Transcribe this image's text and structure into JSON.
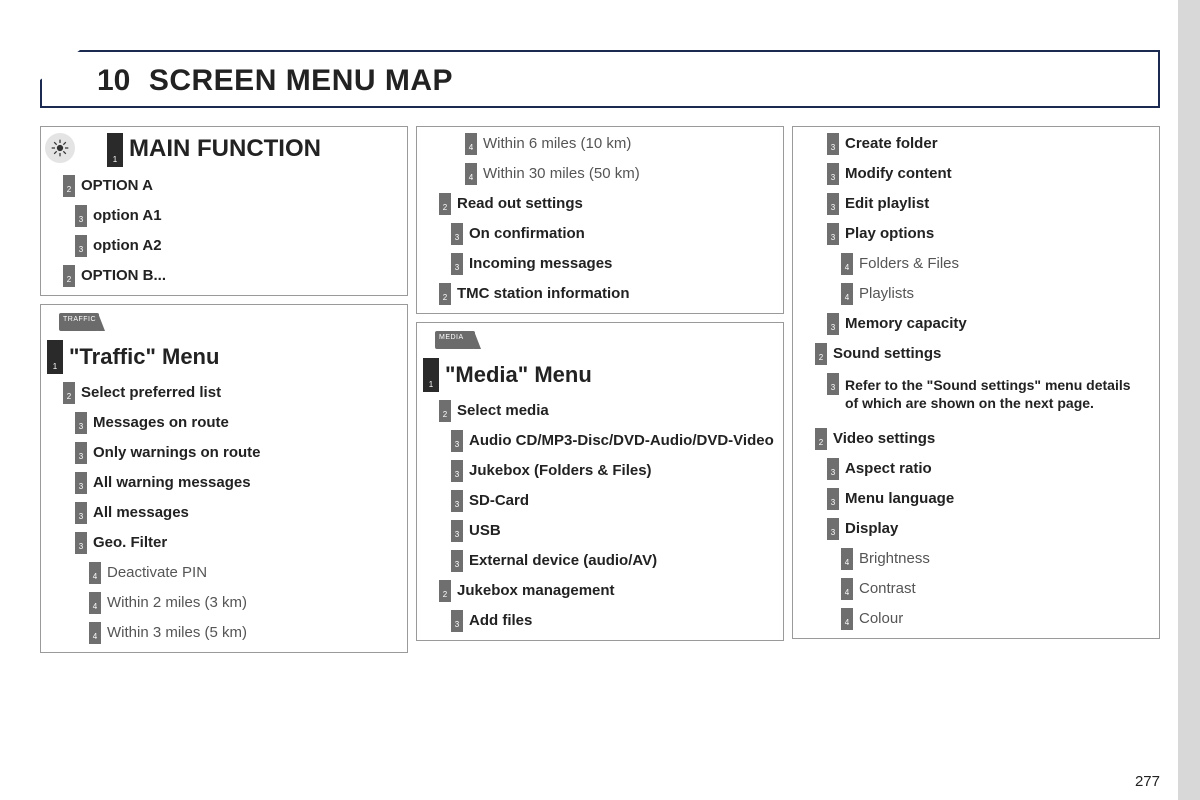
{
  "page_number": "277",
  "header": {
    "num": "10",
    "title": "SCREEN MENU MAP"
  },
  "columns": [
    {
      "boxes": [
        {
          "icon": "legend-sun",
          "rows": [
            {
              "level": "h1",
              "label": "MAIN FUNCTION",
              "n": "1"
            },
            {
              "gap": true
            },
            {
              "level": 2,
              "label": "OPTION A",
              "n": "2"
            },
            {
              "gap": true
            },
            {
              "level": 3,
              "label": "option A1",
              "n": "3"
            },
            {
              "gap": true
            },
            {
              "level": 3,
              "label": "option A2",
              "n": "3"
            },
            {
              "gap": true
            },
            {
              "level": 2,
              "label": "OPTION B...",
              "n": "2"
            }
          ]
        },
        {
          "group_icon": "TRAFFIC",
          "rows": [
            {
              "level": 1,
              "label": "\"Traffic\" Menu",
              "n": "1"
            },
            {
              "gap": true
            },
            {
              "level": 2,
              "label": "Select preferred list",
              "n": "2"
            },
            {
              "gap": true
            },
            {
              "level": 3,
              "label": "Messages on route",
              "n": "3"
            },
            {
              "gap": true
            },
            {
              "level": 3,
              "label": "Only warnings on route",
              "n": "3"
            },
            {
              "gap": true
            },
            {
              "level": 3,
              "label": "All warning messages",
              "n": "3"
            },
            {
              "gap": true
            },
            {
              "level": 3,
              "label": "All messages",
              "n": "3"
            },
            {
              "gap": true
            },
            {
              "level": 3,
              "label": "Geo. Filter",
              "n": "3"
            },
            {
              "gap": true
            },
            {
              "level": 4,
              "label": "Deactivate PIN",
              "n": "4"
            },
            {
              "gap": true
            },
            {
              "level": 4,
              "label": "Within 2 miles (3 km)",
              "n": "4"
            },
            {
              "gap": true
            },
            {
              "level": 4,
              "label": "Within 3 miles (5 km)",
              "n": "4"
            }
          ]
        }
      ]
    },
    {
      "boxes": [
        {
          "rows": [
            {
              "level": 4,
              "label": "Within 6 miles (10 km)",
              "n": "4"
            },
            {
              "gap": true
            },
            {
              "level": 4,
              "label": "Within 30 miles (50 km)",
              "n": "4"
            },
            {
              "gap": true
            },
            {
              "level": 2,
              "label": "Read out settings",
              "n": "2"
            },
            {
              "gap": true
            },
            {
              "level": 3,
              "label": "On confirmation",
              "n": "3"
            },
            {
              "gap": true
            },
            {
              "level": 3,
              "label": "Incoming messages",
              "n": "3"
            },
            {
              "gap": true
            },
            {
              "level": 2,
              "label": "TMC station information",
              "n": "2"
            }
          ]
        },
        {
          "group_icon": "MEDIA",
          "rows": [
            {
              "level": 1,
              "label": "\"Media\" Menu",
              "n": "1"
            },
            {
              "gap": true
            },
            {
              "level": 2,
              "label": "Select media",
              "n": "2"
            },
            {
              "gap": true
            },
            {
              "level": 3,
              "label": "Audio CD/MP3-Disc/DVD-Audio/DVD-Video",
              "n": "3"
            },
            {
              "gap": true
            },
            {
              "level": 3,
              "label": "Jukebox (Folders & Files)",
              "n": "3"
            },
            {
              "gap": true
            },
            {
              "level": 3,
              "label": "SD-Card",
              "n": "3"
            },
            {
              "gap": true
            },
            {
              "level": 3,
              "label": "USB",
              "n": "3"
            },
            {
              "gap": true
            },
            {
              "level": 3,
              "label": "External device (audio/AV)",
              "n": "3"
            },
            {
              "gap": true
            },
            {
              "level": 2,
              "label": "Jukebox management",
              "n": "2"
            },
            {
              "gap": true
            },
            {
              "level": 3,
              "label": "Add files",
              "n": "3"
            }
          ]
        }
      ]
    },
    {
      "boxes": [
        {
          "rows": [
            {
              "level": 3,
              "label": "Create folder",
              "n": "3"
            },
            {
              "gap": true
            },
            {
              "level": 3,
              "label": "Modify content",
              "n": "3"
            },
            {
              "gap": true
            },
            {
              "level": 3,
              "label": "Edit playlist",
              "n": "3"
            },
            {
              "gap": true
            },
            {
              "level": 3,
              "label": "Play options",
              "n": "3"
            },
            {
              "gap": true
            },
            {
              "level": 4,
              "label": "Folders & Files",
              "n": "4"
            },
            {
              "gap": true
            },
            {
              "level": 4,
              "label": "Playlists",
              "n": "4"
            },
            {
              "gap": true
            },
            {
              "level": 3,
              "label": "Memory capacity",
              "n": "3"
            },
            {
              "gap": true
            },
            {
              "level": 2,
              "label": "Sound settings",
              "n": "2"
            },
            {
              "gap": true
            },
            {
              "level": 3,
              "note": true,
              "label": "Refer to the \"Sound settings\" menu details of which are shown on the next page.",
              "n": "3"
            },
            {
              "gap": true
            },
            {
              "gap": true
            },
            {
              "level": 2,
              "label": "Video settings",
              "n": "2"
            },
            {
              "gap": true
            },
            {
              "level": 3,
              "label": "Aspect ratio",
              "n": "3"
            },
            {
              "gap": true
            },
            {
              "level": 3,
              "label": "Menu language",
              "n": "3"
            },
            {
              "gap": true
            },
            {
              "level": 3,
              "label": "Display",
              "n": "3"
            },
            {
              "gap": true
            },
            {
              "level": 4,
              "label": "Brightness",
              "n": "4"
            },
            {
              "gap": true
            },
            {
              "level": 4,
              "label": "Contrast",
              "n": "4"
            },
            {
              "gap": true
            },
            {
              "level": 4,
              "label": "Colour",
              "n": "4"
            }
          ]
        }
      ]
    }
  ]
}
